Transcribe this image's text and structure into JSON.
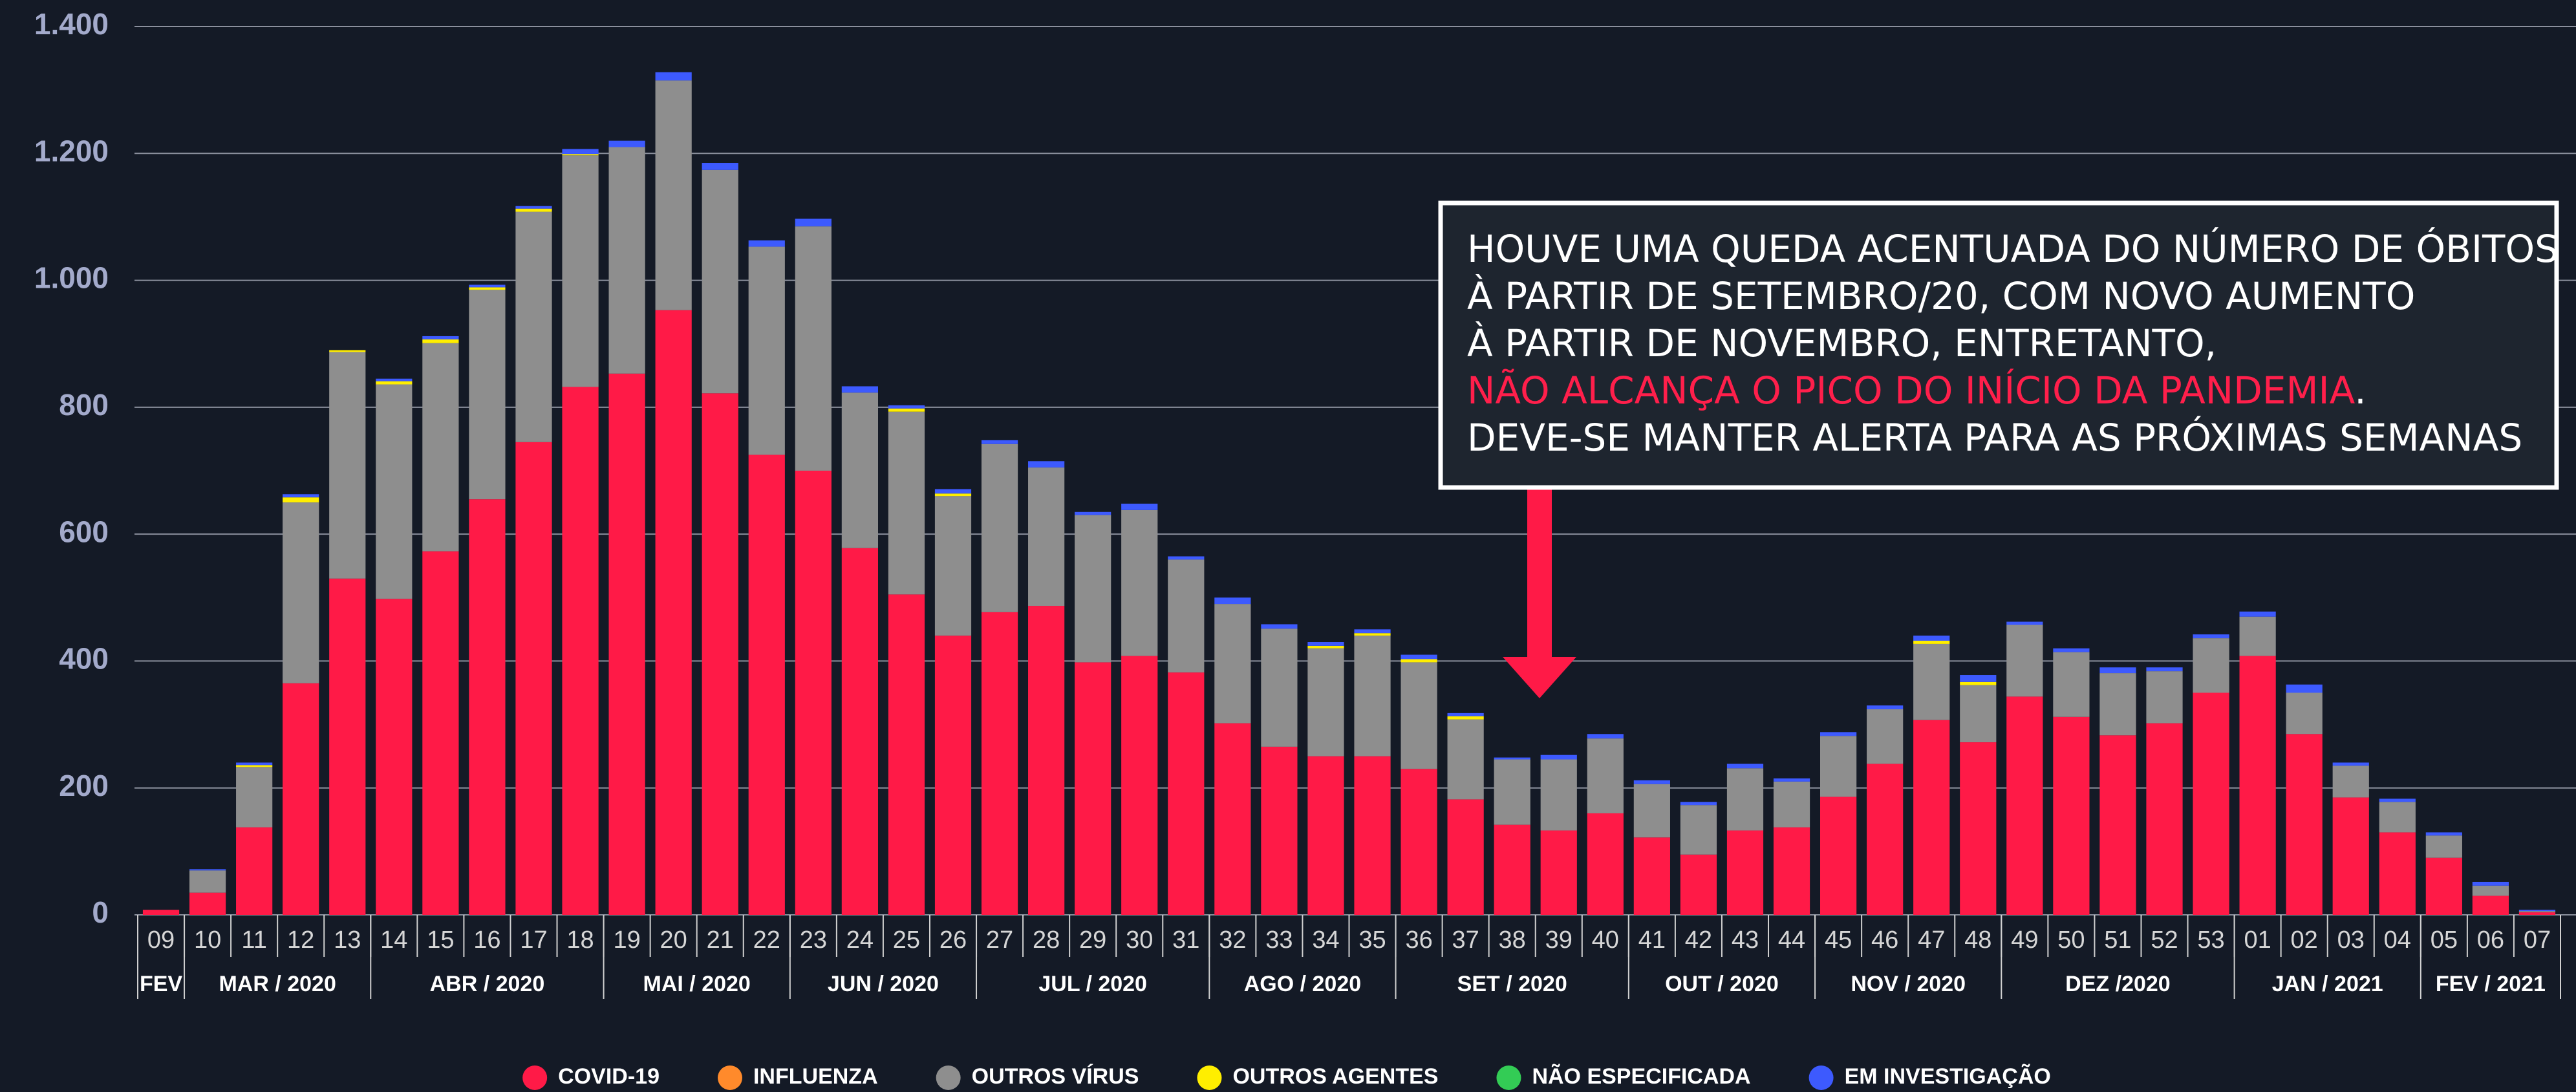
{
  "chart_data": {
    "type": "stacked_bar",
    "categories": [
      "09",
      "10",
      "11",
      "12",
      "13",
      "14",
      "15",
      "16",
      "17",
      "18",
      "19",
      "20",
      "21",
      "22",
      "23",
      "24",
      "25",
      "26",
      "27",
      "28",
      "29",
      "30",
      "31",
      "32",
      "33",
      "34",
      "35",
      "36",
      "37",
      "38",
      "39",
      "40",
      "41",
      "42",
      "43",
      "44",
      "45",
      "46",
      "47",
      "48",
      "49",
      "50",
      "51",
      "52",
      "53",
      "01",
      "02",
      "03",
      "04",
      "05",
      "06",
      "07"
    ],
    "category_groups": [
      {
        "label": "FEV",
        "span": 1
      },
      {
        "label": "MAR / 2020",
        "span": 4
      },
      {
        "label": "ABR / 2020",
        "span": 5
      },
      {
        "label": "MAI / 2020",
        "span": 4
      },
      {
        "label": "JUN / 2020",
        "span": 4
      },
      {
        "label": "JUL / 2020",
        "span": 5
      },
      {
        "label": "AGO / 2020",
        "span": 4
      },
      {
        "label": "SET / 2020",
        "span": 5
      },
      {
        "label": "OUT / 2020",
        "span": 4
      },
      {
        "label": "NOV / 2020",
        "span": 4
      },
      {
        "label": "DEZ /2020",
        "span": 5
      },
      {
        "label": "JAN / 2021",
        "span": 4
      },
      {
        "label": "FEV / 2021",
        "span": 3
      }
    ],
    "series": [
      {
        "name": "COVID-19",
        "color": "#ff1a47",
        "values": [
          8,
          35,
          138,
          365,
          530,
          498,
          573,
          655,
          745,
          832,
          853,
          953,
          822,
          725,
          700,
          578,
          505,
          440,
          477,
          487,
          398,
          408,
          382,
          302,
          265,
          250,
          250,
          230,
          182,
          142,
          133,
          160,
          122,
          95,
          133,
          138,
          186,
          238,
          307,
          272,
          344,
          312,
          283,
          302,
          350,
          408,
          285,
          185,
          130,
          90,
          30,
          4
        ]
      },
      {
        "name": "INFLUENZA",
        "color": "#ff8a2b",
        "values": [
          0,
          0,
          0,
          0,
          0,
          0,
          0,
          0,
          0,
          0,
          0,
          0,
          0,
          0,
          0,
          0,
          0,
          0,
          0,
          0,
          0,
          0,
          0,
          0,
          0,
          0,
          0,
          0,
          0,
          0,
          0,
          0,
          0,
          0,
          0,
          0,
          0,
          0,
          0,
          0,
          0,
          0,
          0,
          0,
          0,
          0,
          0,
          0,
          0,
          0,
          0,
          0
        ]
      },
      {
        "name": "OUTROS VÍRUS",
        "color": "#8e8e8e",
        "values": [
          0,
          35,
          95,
          285,
          357,
          338,
          328,
          330,
          363,
          365,
          357,
          362,
          352,
          328,
          385,
          245,
          288,
          220,
          265,
          218,
          232,
          230,
          178,
          188,
          186,
          170,
          190,
          168,
          126,
          103,
          112,
          118,
          84,
          78,
          98,
          72,
          96,
          86,
          120,
          90,
          113,
          102,
          98,
          82,
          86,
          62,
          65,
          50,
          48,
          35,
          16,
          2
        ]
      },
      {
        "name": "OUTROS AGENTES",
        "color": "#ffee00",
        "values": [
          0,
          0,
          3,
          8,
          3,
          5,
          6,
          4,
          5,
          2,
          0,
          0,
          0,
          0,
          0,
          0,
          5,
          4,
          0,
          0,
          0,
          0,
          0,
          0,
          0,
          4,
          4,
          5,
          5,
          0,
          0,
          0,
          0,
          0,
          0,
          0,
          0,
          0,
          5,
          5,
          0,
          0,
          0,
          0,
          0,
          0,
          0,
          0,
          0,
          0,
          0,
          0
        ]
      },
      {
        "name": "NÃO ESPECIFICADA",
        "color": "#33cc55",
        "values": [
          0,
          0,
          0,
          0,
          0,
          0,
          0,
          0,
          0,
          0,
          0,
          0,
          0,
          0,
          0,
          0,
          0,
          0,
          0,
          0,
          0,
          0,
          0,
          0,
          0,
          0,
          0,
          0,
          0,
          0,
          0,
          0,
          0,
          0,
          0,
          0,
          0,
          0,
          0,
          0,
          0,
          0,
          0,
          0,
          0,
          0,
          0,
          0,
          0,
          0,
          0,
          0
        ]
      },
      {
        "name": "EM INVESTIGAÇÃO",
        "color": "#3d5afe",
        "values": [
          0,
          2,
          4,
          5,
          0,
          4,
          5,
          4,
          4,
          8,
          10,
          13,
          11,
          10,
          12,
          10,
          5,
          7,
          6,
          10,
          5,
          10,
          5,
          10,
          7,
          6,
          6,
          7,
          5,
          3,
          7,
          7,
          6,
          5,
          7,
          5,
          6,
          6,
          8,
          11,
          5,
          6,
          9,
          6,
          6,
          8,
          13,
          5,
          5,
          5,
          6,
          2
        ]
      }
    ],
    "ylim": [
      0,
      1400
    ],
    "yticks": [
      0,
      200,
      400,
      600,
      800,
      {
        "value": 1000,
        "label": "1.000"
      },
      {
        "value": 1200,
        "label": "1.200"
      },
      {
        "value": 1400,
        "label": "1.400"
      }
    ],
    "grid": true,
    "legend": "bottom",
    "annotation": {
      "lines": [
        [
          {
            "text": "HOUVE UMA QUEDA ACENTUADA DO NÚMERO DE ÓBITOS"
          }
        ],
        [
          {
            "text": "À PARTIR DE SETEMBRO/20, COM NOVO AUMENTO"
          }
        ],
        [
          {
            "text": "À PARTIR DE NOVEMBRO, ENTRETANTO,"
          }
        ],
        [
          {
            "text": "NÃO ALCANÇA O PICO DO INÍCIO DA PANDEMIA",
            "color": "#ff1f4b"
          },
          {
            "text": "."
          }
        ],
        [
          {
            "text": "DEVE-SE MANTER ALERTA PARA AS PRÓXIMAS SEMANAS"
          }
        ]
      ]
    }
  }
}
